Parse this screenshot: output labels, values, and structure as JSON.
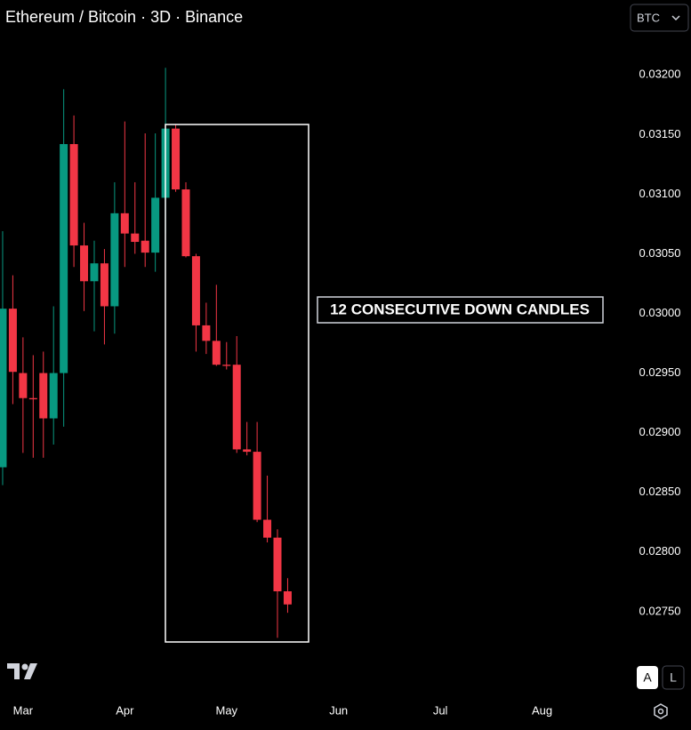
{
  "chart_data": {
    "type": "candlestick",
    "title": "Ethereum / Bitcoin · 3D · Binance",
    "currency_button": "BTC",
    "annotation": "12 CONSECUTIVE DOWN CANDLES",
    "scale_buttons": [
      "A",
      "L"
    ],
    "categories": [
      null,
      null,
      null,
      null,
      null,
      null,
      null,
      null,
      null,
      null,
      null,
      null,
      null,
      null,
      null,
      null,
      null,
      null,
      null,
      null,
      null,
      null,
      null,
      null,
      null,
      null,
      null,
      null,
      null
    ],
    "open": [
      0.02871,
      0.03004,
      0.0295,
      0.02929,
      0.0295,
      0.02912,
      0.0295,
      0.03142,
      0.03057,
      0.03027,
      0.03042,
      0.03006,
      0.03084,
      0.03067,
      0.03061,
      0.03051,
      0.03097,
      0.03155,
      0.03104,
      0.03048,
      0.0299,
      0.02977,
      0.02957,
      0.02957,
      0.02886,
      0.02884,
      0.02827,
      0.02812,
      0.02767
    ],
    "high": [
      0.03069,
      0.03032,
      0.0298,
      0.02965,
      0.02968,
      0.03006,
      0.03188,
      0.03166,
      0.03076,
      0.03061,
      0.03054,
      0.0311,
      0.03161,
      0.0311,
      0.03151,
      0.03151,
      0.03206,
      0.03158,
      0.0311,
      0.0305,
      0.03009,
      0.03024,
      0.02976,
      0.02981,
      0.02909,
      0.02909,
      0.02864,
      0.02819,
      0.02778
    ],
    "low": [
      0.02856,
      0.02924,
      0.02883,
      0.02879,
      0.02879,
      0.0289,
      0.02905,
      0.03039,
      0.03002,
      0.02985,
      0.02974,
      0.02983,
      0.03039,
      0.0305,
      0.03039,
      0.03035,
      0.03067,
      0.03102,
      0.03047,
      0.02968,
      0.02966,
      0.02956,
      0.02953,
      0.02883,
      0.02881,
      0.02825,
      0.02808,
      0.02728,
      0.02749
    ],
    "close": [
      0.03004,
      0.02951,
      0.02929,
      0.02928,
      0.02912,
      0.0295,
      0.03142,
      0.03057,
      0.03027,
      0.03042,
      0.03006,
      0.03084,
      0.03067,
      0.0306,
      0.03051,
      0.03097,
      0.03155,
      0.03104,
      0.03048,
      0.0299,
      0.02977,
      0.02957,
      0.02956,
      0.02886,
      0.02884,
      0.02827,
      0.02812,
      0.02767,
      0.02756
    ],
    "up_color": "#089981",
    "down_color": "#f23645",
    "xlim": [
      -0.26,
      60.9
    ],
    "xticks": [
      {
        "value": 2,
        "label": "Mar"
      },
      {
        "value": 12,
        "label": "Apr"
      },
      {
        "value": 22,
        "label": "May"
      },
      {
        "value": 33,
        "label": "Jun"
      },
      {
        "value": 43,
        "label": "Jul"
      },
      {
        "value": 53,
        "label": "Aug"
      }
    ],
    "ylim": [
      0.02685,
      0.03233
    ],
    "yticks": [
      {
        "value": 0.0275,
        "label": "0.02750"
      },
      {
        "value": 0.028,
        "label": "0.02800"
      },
      {
        "value": 0.0285,
        "label": "0.02850"
      },
      {
        "value": 0.029,
        "label": "0.02900"
      },
      {
        "value": 0.0295,
        "label": "0.02950"
      },
      {
        "value": 0.03,
        "label": "0.03000"
      },
      {
        "value": 0.0305,
        "label": "0.03050"
      },
      {
        "value": 0.031,
        "label": "0.03100"
      },
      {
        "value": 0.0315,
        "label": "0.03150"
      },
      {
        "value": 0.032,
        "label": "0.03200"
      }
    ],
    "grid": false
  }
}
